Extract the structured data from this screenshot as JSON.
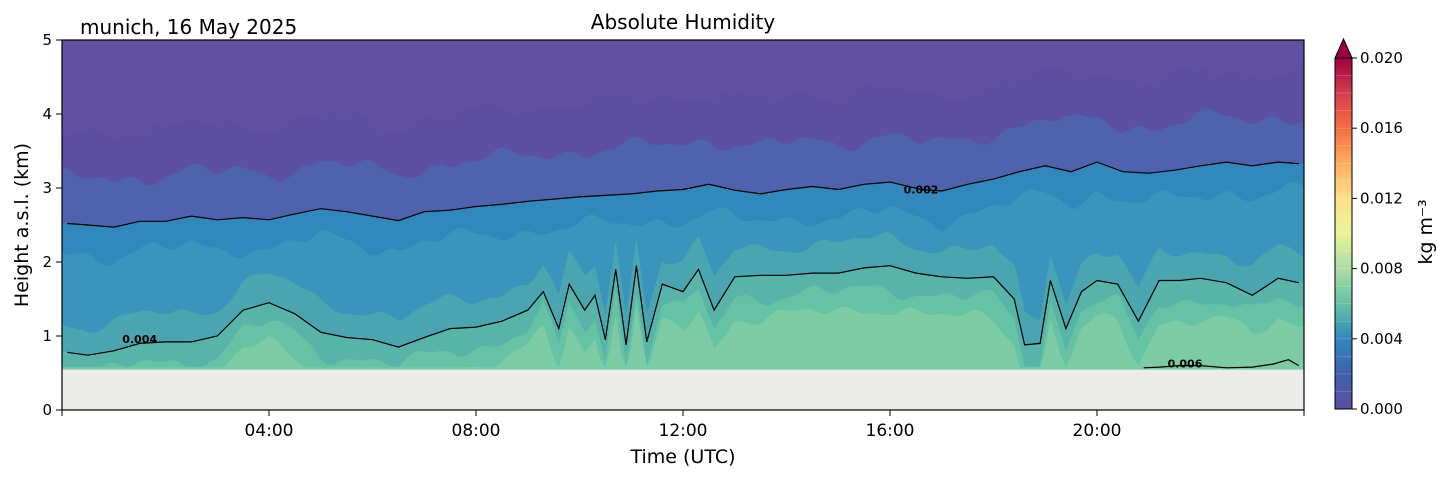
{
  "chart_data": {
    "type": "heatmap",
    "subtype": "filled-contour",
    "title": "Absolute Humidity",
    "subtitle": "munich, 16 May 2025",
    "xlabel": "Time (UTC)",
    "ylabel": "Height a.s.l. (km)",
    "xlim": [
      0,
      24
    ],
    "ylim": [
      0,
      5
    ],
    "x_ticks": [
      4,
      8,
      12,
      16,
      20
    ],
    "x_tick_labels": [
      "04:00",
      "08:00",
      "12:00",
      "16:00",
      "20:00"
    ],
    "y_ticks": [
      0,
      1,
      2,
      3,
      4,
      5
    ],
    "y_tick_labels": [
      "0",
      "1",
      "2",
      "3",
      "4",
      "5"
    ],
    "data_bottom_height_km": 0.55,
    "colorbar": {
      "label": "kg m⁻³",
      "range": [
        0.0,
        0.02
      ],
      "extend": "max",
      "colormap": "Spectral_r",
      "ticks": [
        0.0,
        0.004,
        0.008,
        0.012,
        0.016,
        0.02
      ],
      "tick_labels": [
        "0.000",
        "0.004",
        "0.008",
        "0.012",
        "0.016",
        "0.020"
      ]
    },
    "contour_lines": [
      {
        "level": 0.002,
        "label": "0.002",
        "label_position": [
          16.6,
          2.98
        ],
        "points": [
          [
            0.1,
            2.52
          ],
          [
            0.5,
            2.5
          ],
          [
            1.0,
            2.47
          ],
          [
            1.5,
            2.55
          ],
          [
            2.0,
            2.55
          ],
          [
            2.5,
            2.62
          ],
          [
            3.0,
            2.57
          ],
          [
            3.5,
            2.6
          ],
          [
            4.0,
            2.57
          ],
          [
            4.5,
            2.65
          ],
          [
            5.0,
            2.72
          ],
          [
            5.5,
            2.68
          ],
          [
            6.0,
            2.62
          ],
          [
            6.5,
            2.56
          ],
          [
            7.0,
            2.68
          ],
          [
            7.5,
            2.7
          ],
          [
            8.0,
            2.75
          ],
          [
            8.5,
            2.78
          ],
          [
            9.0,
            2.82
          ],
          [
            9.5,
            2.85
          ],
          [
            10.0,
            2.88
          ],
          [
            10.5,
            2.9
          ],
          [
            11.0,
            2.92
          ],
          [
            11.5,
            2.96
          ],
          [
            12.0,
            2.98
          ],
          [
            12.5,
            3.05
          ],
          [
            13.0,
            2.97
          ],
          [
            13.5,
            2.92
          ],
          [
            14.0,
            2.98
          ],
          [
            14.5,
            3.02
          ],
          [
            15.0,
            2.98
          ],
          [
            15.5,
            3.05
          ],
          [
            16.0,
            3.08
          ],
          [
            16.6,
            2.98
          ],
          [
            17.0,
            2.96
          ],
          [
            17.5,
            3.05
          ],
          [
            18.0,
            3.12
          ],
          [
            18.5,
            3.22
          ],
          [
            19.0,
            3.3
          ],
          [
            19.5,
            3.22
          ],
          [
            20.0,
            3.35
          ],
          [
            20.5,
            3.22
          ],
          [
            21.0,
            3.2
          ],
          [
            21.5,
            3.24
          ],
          [
            22.0,
            3.3
          ],
          [
            22.5,
            3.35
          ],
          [
            23.0,
            3.3
          ],
          [
            23.5,
            3.35
          ],
          [
            23.9,
            3.33
          ]
        ]
      },
      {
        "level": 0.004,
        "label": "0.004",
        "label_position": [
          1.5,
          0.96
        ],
        "points": [
          [
            0.1,
            0.78
          ],
          [
            0.5,
            0.74
          ],
          [
            1.0,
            0.8
          ],
          [
            1.5,
            0.9
          ],
          [
            2.0,
            0.92
          ],
          [
            2.5,
            0.92
          ],
          [
            3.0,
            1.0
          ],
          [
            3.5,
            1.35
          ],
          [
            4.0,
            1.45
          ],
          [
            4.5,
            1.3
          ],
          [
            5.0,
            1.05
          ],
          [
            5.5,
            0.98
          ],
          [
            6.0,
            0.95
          ],
          [
            6.5,
            0.85
          ],
          [
            7.0,
            0.98
          ],
          [
            7.5,
            1.1
          ],
          [
            8.0,
            1.12
          ],
          [
            8.5,
            1.2
          ],
          [
            9.0,
            1.35
          ],
          [
            9.3,
            1.6
          ],
          [
            9.6,
            1.1
          ],
          [
            9.8,
            1.7
          ],
          [
            10.1,
            1.35
          ],
          [
            10.3,
            1.55
          ],
          [
            10.5,
            0.95
          ],
          [
            10.7,
            1.9
          ],
          [
            10.9,
            0.88
          ],
          [
            11.1,
            1.95
          ],
          [
            11.3,
            0.92
          ],
          [
            11.6,
            1.7
          ],
          [
            12.0,
            1.6
          ],
          [
            12.3,
            1.9
          ],
          [
            12.6,
            1.35
          ],
          [
            13.0,
            1.8
          ],
          [
            13.5,
            1.82
          ],
          [
            14.0,
            1.82
          ],
          [
            14.5,
            1.85
          ],
          [
            15.0,
            1.85
          ],
          [
            15.5,
            1.92
          ],
          [
            16.0,
            1.95
          ],
          [
            16.5,
            1.85
          ],
          [
            17.0,
            1.8
          ],
          [
            17.5,
            1.78
          ],
          [
            18.0,
            1.8
          ],
          [
            18.4,
            1.5
          ],
          [
            18.6,
            0.88
          ],
          [
            18.9,
            0.9
          ],
          [
            19.1,
            1.75
          ],
          [
            19.4,
            1.1
          ],
          [
            19.7,
            1.6
          ],
          [
            20.0,
            1.75
          ],
          [
            20.4,
            1.7
          ],
          [
            20.8,
            1.2
          ],
          [
            21.2,
            1.75
          ],
          [
            21.6,
            1.75
          ],
          [
            22.0,
            1.78
          ],
          [
            22.5,
            1.72
          ],
          [
            23.0,
            1.55
          ],
          [
            23.5,
            1.78
          ],
          [
            23.9,
            1.72
          ]
        ]
      },
      {
        "level": 0.006,
        "label": "0.006",
        "label_position": [
          21.7,
          0.63
        ],
        "points": [
          [
            20.9,
            0.57
          ],
          [
            21.2,
            0.58
          ],
          [
            21.6,
            0.6
          ],
          [
            22.0,
            0.6
          ],
          [
            22.5,
            0.57
          ],
          [
            23.0,
            0.58
          ],
          [
            23.4,
            0.62
          ],
          [
            23.7,
            0.68
          ],
          [
            23.9,
            0.6
          ]
        ]
      }
    ],
    "grid": false,
    "legend": "colorbar-right"
  }
}
